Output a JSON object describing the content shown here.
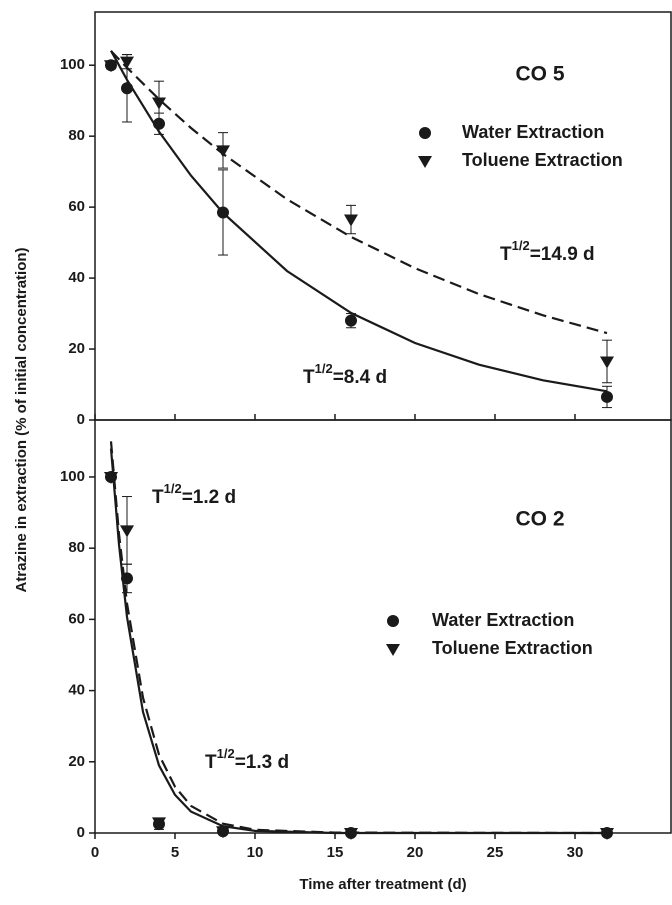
{
  "ylabel": "Atrazine in extraction (% of initial concentration)",
  "xlabel": "Time after treatment (d)",
  "chart_data": [
    {
      "type": "scatter",
      "title": "CO 5",
      "xlim": [
        0,
        36
      ],
      "ylim": [
        0,
        115
      ],
      "yticks": [
        0,
        20,
        40,
        60,
        80,
        100
      ],
      "series": [
        {
          "name": "Water Extraction",
          "marker": "circle",
          "color": "#1a1a1a",
          "x": [
            1,
            2,
            4,
            8,
            16,
            32
          ],
          "values": [
            100,
            93.5,
            83.5,
            58.5,
            28,
            6.5
          ],
          "errors": [
            1,
            9.5,
            3,
            12,
            2,
            3
          ]
        },
        {
          "name": "Toluene Extraction",
          "marker": "triangle",
          "color": "#1a1a1a",
          "x": [
            1,
            2,
            4,
            8,
            16,
            32
          ],
          "values": [
            100,
            101,
            89.5,
            76,
            56.5,
            16.5
          ],
          "errors": [
            0,
            2,
            6,
            5,
            4,
            6
          ]
        }
      ],
      "fits": [
        {
          "dash": false,
          "color": "#1a1a1a",
          "x": [
            1,
            2,
            4,
            6,
            8,
            12,
            16,
            20,
            24,
            28,
            32
          ],
          "values": [
            104.1,
            95.9,
            81.3,
            68.9,
            58.4,
            42.0,
            30.2,
            21.7,
            15.6,
            11.2,
            8.1
          ]
        },
        {
          "dash": true,
          "color": "#1a1a1a",
          "x": [
            1,
            2,
            4,
            6,
            8,
            12,
            16,
            20,
            24,
            28,
            32
          ],
          "values": [
            104.0,
            99.3,
            90.4,
            82.3,
            75.0,
            62.2,
            51.6,
            42.8,
            35.5,
            29.5,
            24.5
          ]
        }
      ],
      "annotations": [
        [
          "T",
          "1/2",
          "=14.9 d"
        ],
        [
          "T",
          "1/2",
          "=8.4 d"
        ]
      ]
    },
    {
      "type": "scatter",
      "title": "CO 2",
      "xlim": [
        0,
        36
      ],
      "ylim": [
        0,
        116
      ],
      "yticks": [
        0,
        20,
        40,
        60,
        80,
        100
      ],
      "xticks": [
        0,
        5,
        10,
        15,
        20,
        25,
        30
      ],
      "series": [
        {
          "name": "Water Extraction",
          "marker": "circle",
          "color": "#1a1a1a",
          "x": [
            1,
            2,
            4,
            8,
            16,
            32
          ],
          "values": [
            100,
            71.5,
            2.5,
            0.5,
            0,
            0
          ],
          "errors": [
            0,
            4,
            1.5,
            0,
            0,
            0
          ]
        },
        {
          "name": "Toluene Extraction",
          "marker": "triangle",
          "color": "#1a1a1a",
          "x": [
            1,
            2,
            4,
            8,
            16,
            32
          ],
          "values": [
            100,
            85,
            3,
            0.5,
            0,
            0
          ],
          "errors": [
            0,
            9.5,
            1,
            0,
            0,
            0
          ]
        }
      ],
      "fits": [
        {
          "dash": false,
          "color": "#1a1a1a",
          "x": [
            1,
            1.5,
            2,
            3,
            4,
            5,
            6,
            8,
            10,
            15,
            32
          ],
          "values": [
            108,
            81,
            60.7,
            34,
            19,
            10.7,
            6,
            1.9,
            0.6,
            0,
            0
          ]
        },
        {
          "dash": true,
          "color": "#1a1a1a",
          "x": [
            1,
            1.5,
            2,
            3,
            4,
            5,
            6,
            8,
            10,
            15,
            32
          ],
          "values": [
            110,
            84,
            64.5,
            38,
            22,
            13,
            7.6,
            2.6,
            0.9,
            0.1,
            0
          ]
        }
      ],
      "annotations": [
        [
          "T",
          "1/2",
          "=1.2 d"
        ],
        [
          "T",
          "1/2",
          "=1.3 d"
        ]
      ]
    }
  ]
}
